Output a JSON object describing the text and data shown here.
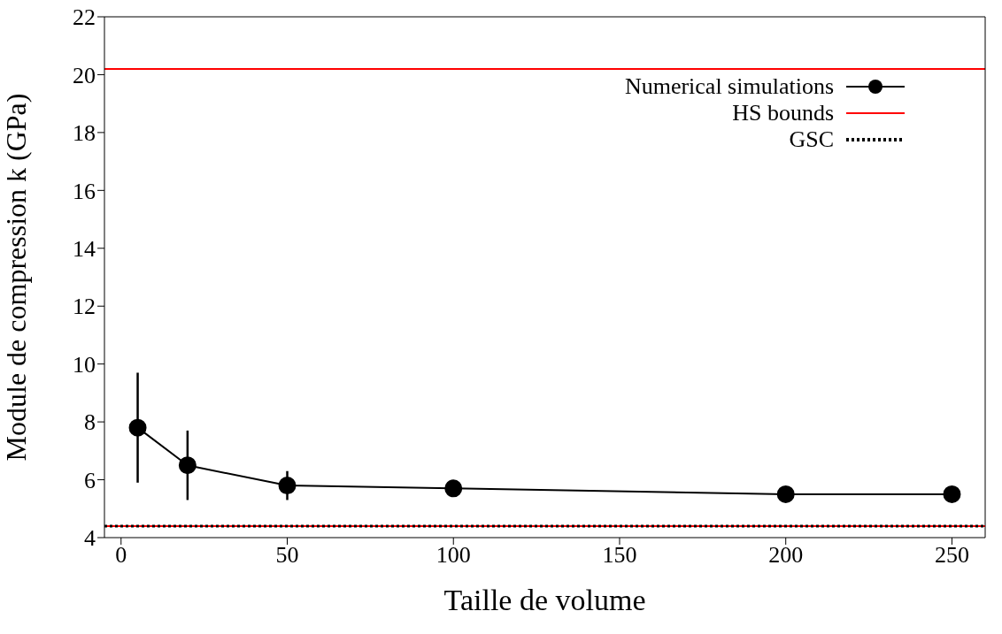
{
  "chart_data": {
    "type": "line",
    "xlabel": "Taille de volume",
    "ylabel": "Module de compression k (GPa)",
    "xlim": [
      -5,
      260
    ],
    "xticks": [
      0,
      50,
      100,
      150,
      200,
      250
    ],
    "ylim": [
      4,
      22
    ],
    "yticks": [
      4,
      6,
      8,
      10,
      12,
      14,
      16,
      18,
      20,
      22
    ],
    "series": [
      {
        "name": "Numerical simulations",
        "color": "#000000",
        "x": [
          5,
          20,
          50,
          100,
          200,
          250
        ],
        "values": [
          7.8,
          6.5,
          5.8,
          5.7,
          5.5,
          5.5
        ],
        "errors": [
          1.9,
          1.2,
          0.5,
          null,
          null,
          null
        ],
        "marker": "circle",
        "line_style": "solid"
      },
      {
        "name": "HS bounds",
        "color": "#ff0000",
        "x": [
          -5,
          260
        ],
        "values": [
          20.2,
          20.2
        ],
        "marker": "none",
        "line_style": "solid"
      },
      {
        "color": "#ff0000",
        "x": [
          -5,
          260
        ],
        "values": [
          4.4,
          4.4
        ],
        "marker": "none",
        "line_style": "solid"
      },
      {
        "name": "GSC",
        "color": "#000000",
        "x": [
          -5,
          260
        ],
        "values": [
          4.4,
          4.4
        ],
        "marker": "none",
        "line_style": "dotted"
      }
    ],
    "grid": false,
    "legend": "top right"
  }
}
